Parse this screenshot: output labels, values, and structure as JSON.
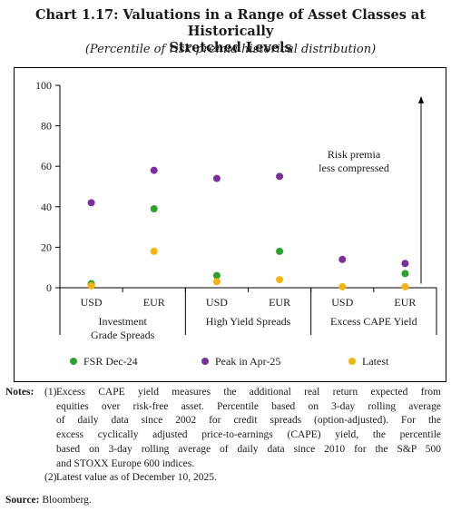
{
  "title_line1": "Chart 1.17: Valuations in a Range of Asset Classes at Historically",
  "title_line2": "Stretched Levels",
  "subtitle": "(Percentile of risk premia historical distribution)",
  "annotation": {
    "line1": "Risk premia",
    "line2": "less compressed"
  },
  "colors": {
    "fsr": "#2ca02c",
    "peak": "#7b2f9e",
    "latest": "#f5b50e"
  },
  "chart_data": {
    "type": "scatter",
    "title": "Chart 1.17: Valuations in a Range of Asset Classes at Historically Stretched Levels",
    "subtitle": "(Percentile of risk premia historical distribution)",
    "categories": [
      "USD",
      "EUR",
      "USD",
      "EUR",
      "USD",
      "EUR"
    ],
    "groups": [
      {
        "label_lines": [
          "Investment",
          "Grade Spreads"
        ],
        "categories": [
          "USD",
          "EUR"
        ]
      },
      {
        "label_lines": [
          "High Yield Spreads"
        ],
        "categories": [
          "USD",
          "EUR"
        ]
      },
      {
        "label_lines": [
          "Excess CAPE Yield"
        ],
        "categories": [
          "USD",
          "EUR"
        ]
      }
    ],
    "series": [
      {
        "name": "FSR Dec-24",
        "color": "#2ca02c",
        "values": [
          2,
          39,
          6,
          18,
          null,
          7
        ]
      },
      {
        "name": "Peak in Apr-25",
        "color": "#7b2f9e",
        "values": [
          42,
          58,
          54,
          55,
          14,
          12
        ]
      },
      {
        "name": "Latest",
        "color": "#f5b50e",
        "values": [
          1,
          18,
          3,
          4,
          0.5,
          0.5
        ]
      }
    ],
    "yticks": [
      0,
      20,
      40,
      60,
      80,
      100
    ],
    "ylim": [
      0,
      100
    ],
    "grid": false,
    "legend_position": "bottom"
  },
  "notes": {
    "label": "Notes:",
    "items": [
      {
        "num": "(1)",
        "lines": [
          "Excess CAPE yield measures the additional real return expected from",
          "equities over risk-free asset. Percentile based on 3-day rolling average",
          "of daily data since 2002 for credit spreads (option-adjusted). For the",
          "excess cyclically adjusted price-to-earnings (CAPE) yield, the percentile",
          "based on 3-day rolling average of daily data since 2010 for the S&P 500",
          "and STOXX Europe 600 indices."
        ]
      },
      {
        "num": "(2)",
        "lines": [
          "Latest value as of December 10, 2025."
        ]
      }
    ]
  },
  "source": {
    "label": "Source:",
    "text": "Bloomberg."
  }
}
